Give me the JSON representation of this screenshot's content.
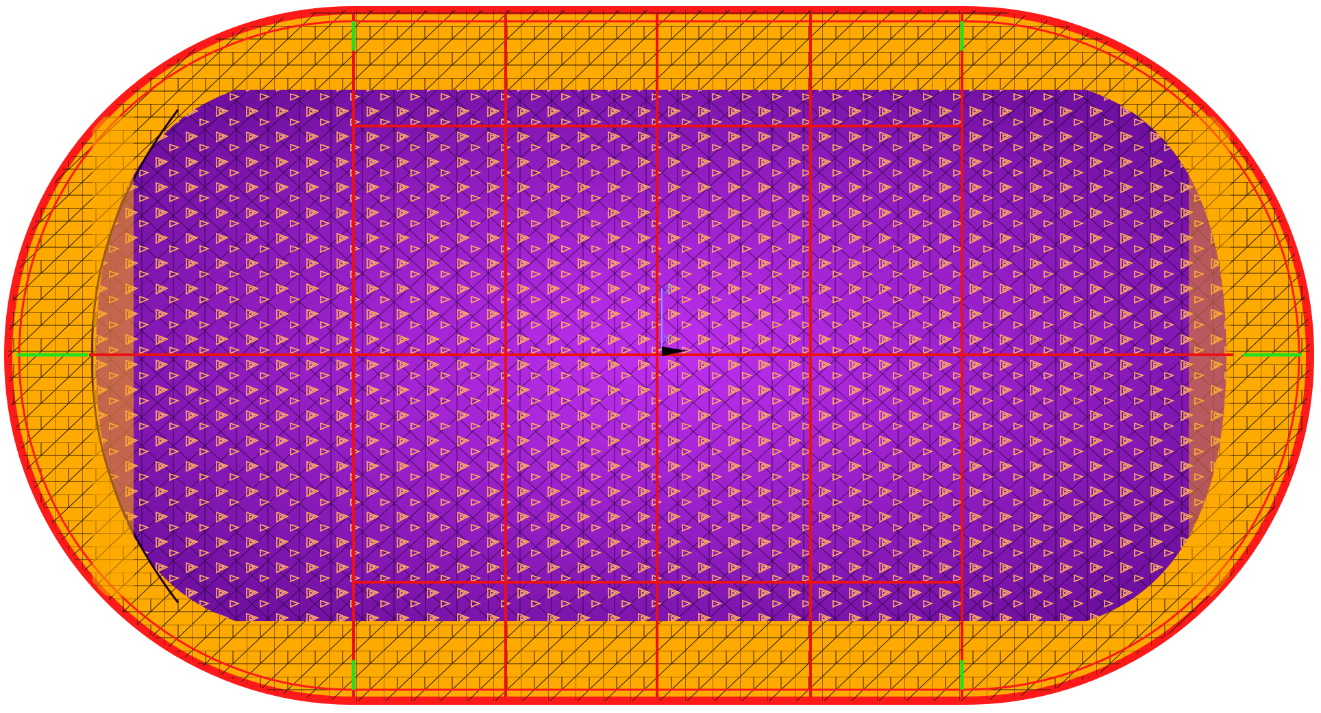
{
  "viewport": {
    "triad_labels": [
      "Z",
      "Y"
    ]
  }
}
